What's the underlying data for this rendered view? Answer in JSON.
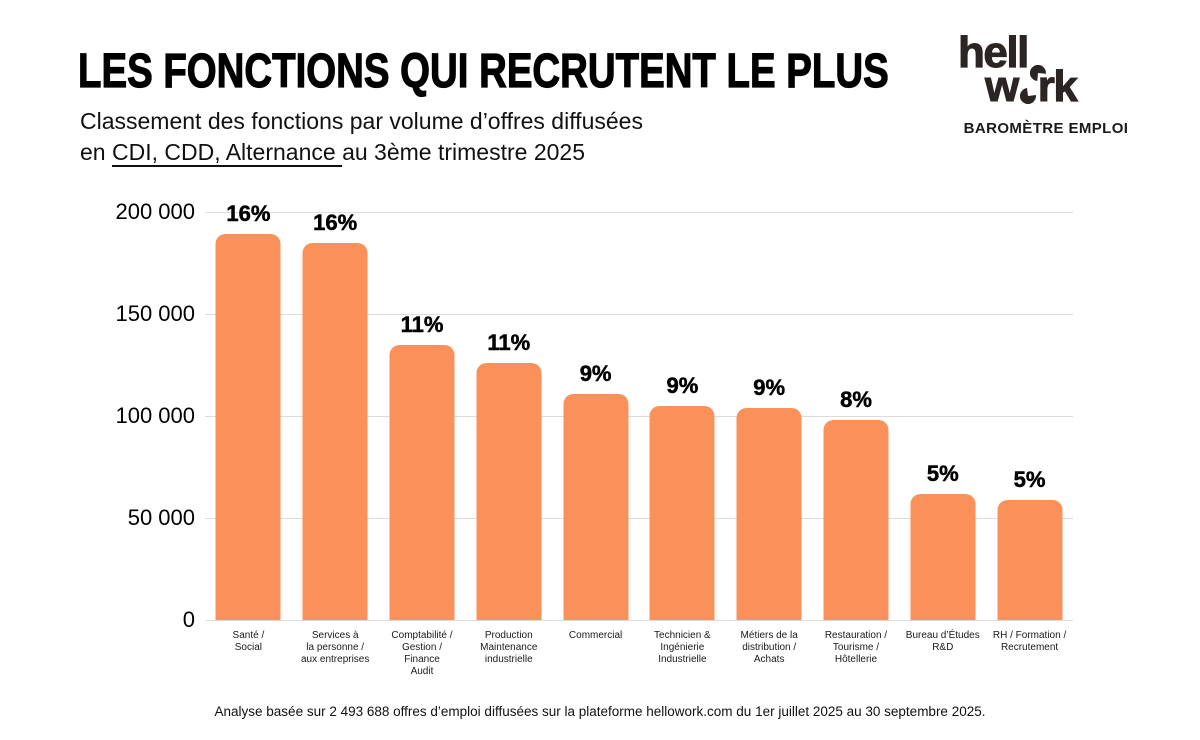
{
  "header": {
    "title": "LES FONCTIONS QUI RECRUTENT LE PLUS",
    "subtitle_line1": "Classement des fonctions par volume d’offres diffusées",
    "subtitle_line2_prefix": "en ",
    "subtitle_line2_underlined": "CDI, CDD, Alternance ",
    "subtitle_line2_suffix": "au 3ème trimestre 2025"
  },
  "logo": {
    "line1": "hell",
    "line2_pre": "w",
    "line2_post": "rk",
    "tagline": "BAROMÈTRE EMPLOI"
  },
  "chart_data": {
    "type": "bar",
    "title": "Classement des fonctions par volume d’offres diffusées en CDI, CDD, Alternance au 3ème trimestre 2025",
    "categories": [
      "Santé /\nSocial",
      "Services à\nla personne /\naux entreprises",
      "Comptabilité /\nGestion /\nFinance\nAudit",
      "Production\nMaintenance\nindustrielle",
      "Commercial",
      "Technicien &\nIngénierie\nIndustrielle",
      "Métiers de la\ndistribution /\nAchats",
      "Restauration /\nTourisme /\nHôtellerie",
      "Bureau d’Études\nR&D",
      "RH / Formation /\nRecrutement"
    ],
    "values": [
      189000,
      185000,
      135000,
      126000,
      111000,
      105000,
      104000,
      98000,
      62000,
      59000
    ],
    "percent_labels": [
      "16%",
      "16%",
      "11%",
      "11%",
      "9%",
      "9%",
      "9%",
      "8%",
      "5%",
      "5%"
    ],
    "xlabel": "",
    "ylabel": "",
    "ylim": [
      0,
      200000
    ],
    "yticks": [
      {
        "value": 0,
        "label": "0"
      },
      {
        "value": 50000,
        "label": "50 000"
      },
      {
        "value": 100000,
        "label": "100 000"
      },
      {
        "value": 150000,
        "label": "150 000"
      },
      {
        "value": 200000,
        "label": "200 000"
      }
    ],
    "grid": true,
    "legend": false,
    "bar_color": "#FB915A",
    "gridline_color": "#dcdcdc"
  },
  "footer": {
    "note": "Analyse basée sur 2 493 688 offres d’emploi diffusées sur la plateforme hellowork.com du 1er juillet 2025 au 30 septembre 2025."
  }
}
